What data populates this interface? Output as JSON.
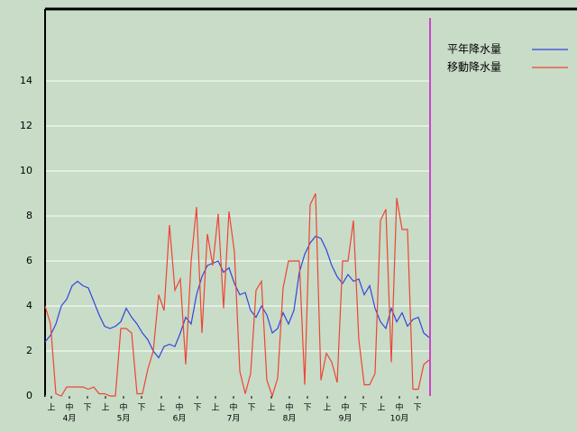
{
  "chart_data": {
    "type": "line",
    "legend": "upper right",
    "grid": true,
    "x": [
      0,
      3,
      6,
      9,
      12,
      15,
      18,
      21,
      24,
      27,
      30,
      33,
      36,
      39,
      42,
      45,
      48,
      51,
      54,
      57,
      60,
      63,
      66,
      69,
      72,
      75,
      78,
      81,
      84,
      87,
      90,
      93,
      96,
      99,
      102,
      105,
      108,
      111,
      114,
      117,
      120,
      123,
      126,
      129,
      132,
      135,
      138,
      141,
      144,
      147,
      150,
      153,
      156,
      159,
      162,
      165,
      168,
      171,
      174,
      177,
      180,
      183,
      186,
      189,
      192,
      195,
      198,
      201,
      204,
      207,
      210,
      213
    ],
    "xlim": [
      0,
      213
    ],
    "xticks": [
      {
        "value": 3.5,
        "label": "上"
      },
      {
        "value": 13.5,
        "label": "中"
      },
      {
        "value": 23.5,
        "label": "下"
      },
      {
        "value": 33.5,
        "label": "上"
      },
      {
        "value": 43.5,
        "label": "中"
      },
      {
        "value": 53.5,
        "label": "下"
      },
      {
        "value": 64.5,
        "label": "上"
      },
      {
        "value": 74.5,
        "label": "中"
      },
      {
        "value": 84.5,
        "label": "下"
      },
      {
        "value": 94.5,
        "label": "上"
      },
      {
        "value": 104.5,
        "label": "中"
      },
      {
        "value": 114.5,
        "label": "下"
      },
      {
        "value": 125.5,
        "label": "上"
      },
      {
        "value": 135.5,
        "label": "中"
      },
      {
        "value": 145.5,
        "label": "下"
      },
      {
        "value": 156.5,
        "label": "上"
      },
      {
        "value": 166.5,
        "label": "中"
      },
      {
        "value": 176.5,
        "label": "下"
      },
      {
        "value": 186.5,
        "label": "上"
      },
      {
        "value": 196.5,
        "label": "中"
      },
      {
        "value": 206.5,
        "label": "下"
      }
    ],
    "month_ticks": [
      {
        "value": 13.5,
        "label": "4月"
      },
      {
        "value": 43.5,
        "label": "5月"
      },
      {
        "value": 74.5,
        "label": "6月"
      },
      {
        "value": 104.5,
        "label": "7月"
      },
      {
        "value": 135.5,
        "label": "8月"
      },
      {
        "value": 166.5,
        "label": "9月"
      },
      {
        "value": 196.5,
        "label": "10月"
      }
    ],
    "ylim": [
      0,
      17.2
    ],
    "yticks": [
      0,
      2,
      4,
      6,
      8,
      10,
      12,
      14
    ],
    "series": [
      {
        "name": "平年降水量",
        "color": "#3344dd",
        "values": [
          2.4,
          2.7,
          3.2,
          4.0,
          4.3,
          4.9,
          5.1,
          4.9,
          4.8,
          4.2,
          3.6,
          3.1,
          3.0,
          3.1,
          3.3,
          3.9,
          3.5,
          3.2,
          2.8,
          2.5,
          2.0,
          1.7,
          2.2,
          2.3,
          2.2,
          2.8,
          3.5,
          3.2,
          4.5,
          5.3,
          5.8,
          5.9,
          6.0,
          5.5,
          5.7,
          5.0,
          4.5,
          4.6,
          3.8,
          3.5,
          4.0,
          3.6,
          2.8,
          3.0,
          3.7,
          3.2,
          3.8,
          5.5,
          6.3,
          6.8,
          7.1,
          7.0,
          6.5,
          5.8,
          5.3,
          5.0,
          5.4,
          5.1,
          5.2,
          4.5,
          4.9,
          3.9,
          3.3,
          3.0,
          3.9,
          3.3,
          3.7,
          3.1,
          3.4,
          3.5,
          2.8,
          2.6
        ]
      },
      {
        "name": "移動降水量",
        "color": "#ee4433",
        "values": [
          4.0,
          3.2,
          0.1,
          0,
          0.4,
          0.4,
          0.4,
          0.4,
          0.3,
          0.4,
          0.1,
          0.1,
          0,
          0,
          3.0,
          3.0,
          2.8,
          0.1,
          0.1,
          1.2,
          2.0,
          4.5,
          3.8,
          7.6,
          4.7,
          5.2,
          1.4,
          6.0,
          8.4,
          2.8,
          7.2,
          5.8,
          8.1,
          3.9,
          8.2,
          6.4,
          1.1,
          0.1,
          1.0,
          4.7,
          5.1,
          0.7,
          0,
          0.8,
          4.8,
          6.0,
          6.0,
          6.0,
          0.5,
          8.5,
          9.0,
          0.7,
          1.9,
          1.5,
          0.6,
          6.0,
          6.0,
          7.8,
          2.5,
          0.5,
          0.5,
          1.0,
          7.8,
          8.3,
          1.5,
          8.8,
          7.4,
          7.4,
          0.3,
          0.3,
          1.4,
          1.6
        ]
      }
    ]
  }
}
